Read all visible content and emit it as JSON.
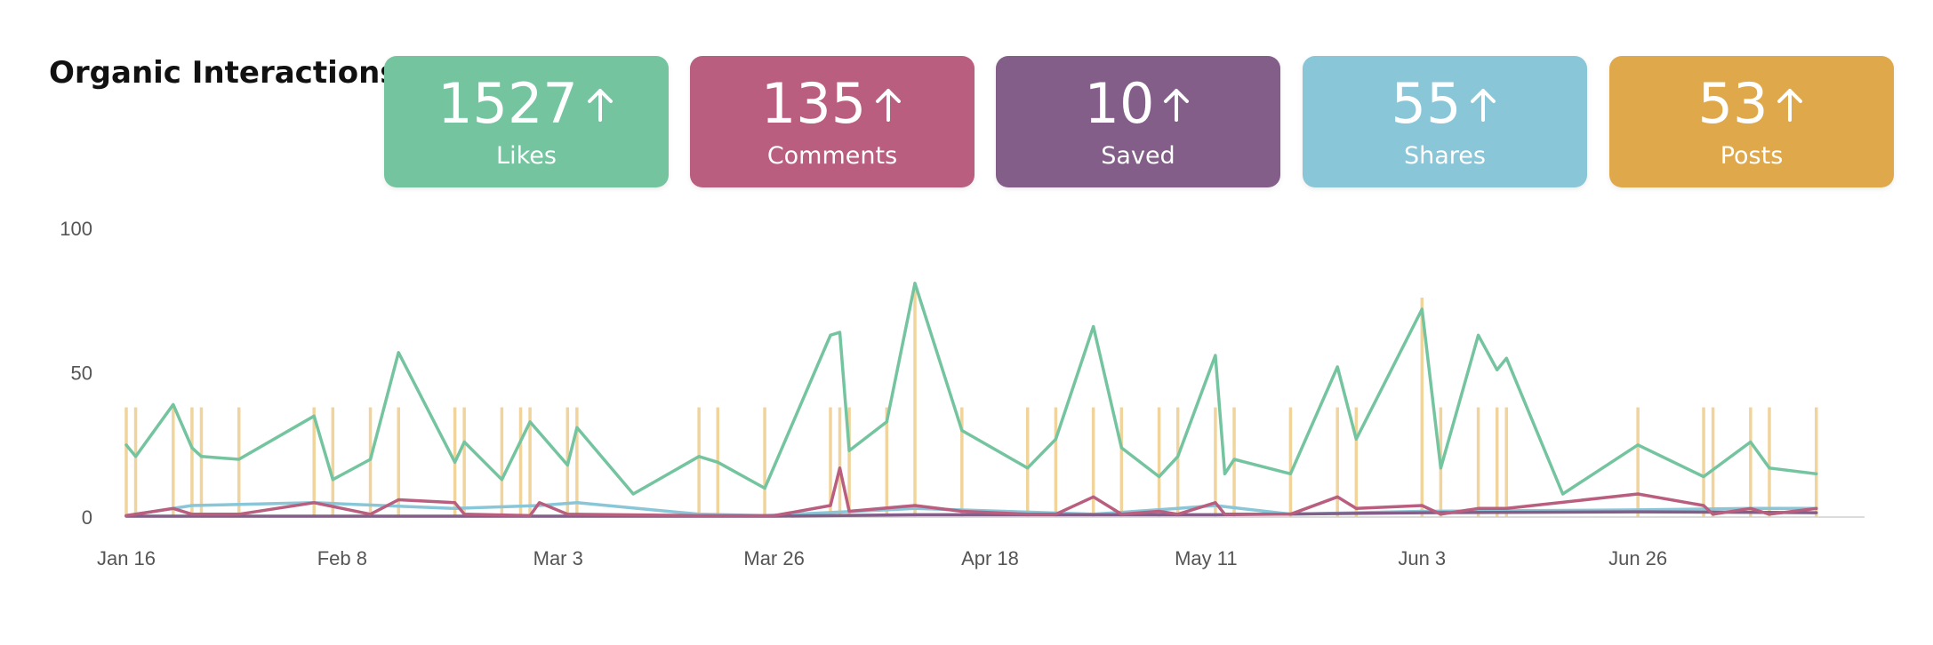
{
  "header": {
    "title": "Organic Interactions"
  },
  "cards": [
    {
      "value": "1527",
      "label": "Likes",
      "color": "#74c49f"
    },
    {
      "value": "135",
      "label": "Comments",
      "color": "#b95e7e"
    },
    {
      "value": "10",
      "label": "Saved",
      "color": "#835e88"
    },
    {
      "value": "55",
      "label": "Shares",
      "color": "#89c6d8"
    },
    {
      "value": "53",
      "label": "Posts",
      "color": "#dfa94b"
    }
  ],
  "icons": {
    "trend": "arrow-up-icon"
  },
  "chart_data": {
    "type": "line",
    "title": "",
    "xlabel": "",
    "ylabel": "",
    "ylim": [
      0,
      100
    ],
    "xlim": [
      "2023-01-16",
      "2023-07-19"
    ],
    "y_ticks": [
      "0",
      "50",
      "100"
    ],
    "x_ticks": [
      {
        "label": "Jan 16",
        "date": "2023-01-16"
      },
      {
        "label": "Feb 8",
        "date": "2023-02-08"
      },
      {
        "label": "Mar 3",
        "date": "2023-03-03"
      },
      {
        "label": "Mar 26",
        "date": "2023-03-26"
      },
      {
        "label": "Apr 18",
        "date": "2023-04-18"
      },
      {
        "label": "May 11",
        "date": "2023-05-11"
      },
      {
        "label": "Jun 3",
        "date": "2023-06-03"
      },
      {
        "label": "Jun 26",
        "date": "2023-06-26"
      }
    ],
    "grid": false,
    "legend": "none",
    "posts": {
      "color": "#f0d49c",
      "points": [
        [
          "2023-01-16",
          38
        ],
        [
          "2023-01-17",
          38
        ],
        [
          "2023-01-21",
          38
        ],
        [
          "2023-01-23",
          38
        ],
        [
          "2023-01-24",
          38
        ],
        [
          "2023-01-28",
          38
        ],
        [
          "2023-02-05",
          38
        ],
        [
          "2023-02-07",
          38
        ],
        [
          "2023-02-11",
          38
        ],
        [
          "2023-02-14",
          38
        ],
        [
          "2023-02-20",
          38
        ],
        [
          "2023-02-21",
          38
        ],
        [
          "2023-02-25",
          38
        ],
        [
          "2023-02-27",
          38
        ],
        [
          "2023-02-28",
          38
        ],
        [
          "2023-03-04",
          38
        ],
        [
          "2023-03-05",
          38
        ],
        [
          "2023-03-18",
          38
        ],
        [
          "2023-03-20",
          38
        ],
        [
          "2023-03-25",
          38
        ],
        [
          "2023-04-01",
          38
        ],
        [
          "2023-04-02",
          38
        ],
        [
          "2023-04-03",
          38
        ],
        [
          "2023-04-07",
          38
        ],
        [
          "2023-04-10",
          80
        ],
        [
          "2023-04-15",
          38
        ],
        [
          "2023-04-22",
          38
        ],
        [
          "2023-04-25",
          38
        ],
        [
          "2023-04-29",
          38
        ],
        [
          "2023-05-02",
          38
        ],
        [
          "2023-05-06",
          38
        ],
        [
          "2023-05-08",
          38
        ],
        [
          "2023-05-12",
          38
        ],
        [
          "2023-05-14",
          38
        ],
        [
          "2023-05-20",
          38
        ],
        [
          "2023-05-25",
          38
        ],
        [
          "2023-05-27",
          38
        ],
        [
          "2023-06-03",
          76
        ],
        [
          "2023-06-05",
          38
        ],
        [
          "2023-06-09",
          38
        ],
        [
          "2023-06-11",
          38
        ],
        [
          "2023-06-12",
          38
        ],
        [
          "2023-06-26",
          38
        ],
        [
          "2023-07-03",
          38
        ],
        [
          "2023-07-04",
          38
        ],
        [
          "2023-07-08",
          38
        ],
        [
          "2023-07-10",
          38
        ],
        [
          "2023-07-15",
          38
        ]
      ]
    },
    "series": [
      {
        "color": "#89c6d8",
        "points": [
          [
            "2023-01-16",
            0.5
          ],
          [
            "2023-01-23",
            4
          ],
          [
            "2023-02-05",
            5
          ],
          [
            "2023-02-20",
            3
          ],
          [
            "2023-03-01",
            4
          ],
          [
            "2023-03-05",
            5
          ],
          [
            "2023-03-18",
            1
          ],
          [
            "2023-03-25",
            0.5
          ],
          [
            "2023-04-10",
            3
          ],
          [
            "2023-04-29",
            1
          ],
          [
            "2023-05-08",
            3
          ],
          [
            "2023-05-12",
            4
          ],
          [
            "2023-05-20",
            1
          ],
          [
            "2023-06-03",
            2
          ],
          [
            "2023-06-26",
            2.5
          ],
          [
            "2023-07-08",
            3
          ],
          [
            "2023-07-15",
            3
          ]
        ]
      },
      {
        "color": "#835e88",
        "points": [
          [
            "2023-01-16",
            0.3
          ],
          [
            "2023-02-20",
            0.3
          ],
          [
            "2023-03-26",
            0.3
          ],
          [
            "2023-04-10",
            0.8
          ],
          [
            "2023-05-12",
            0.8
          ],
          [
            "2023-06-03",
            1.5
          ],
          [
            "2023-06-26",
            1.8
          ],
          [
            "2023-07-15",
            1.5
          ]
        ]
      },
      {
        "color": "#b95e7e",
        "points": [
          [
            "2023-01-16",
            0.5
          ],
          [
            "2023-01-21",
            3
          ],
          [
            "2023-01-23",
            1
          ],
          [
            "2023-01-28",
            1
          ],
          [
            "2023-02-05",
            5
          ],
          [
            "2023-02-11",
            1
          ],
          [
            "2023-02-14",
            6
          ],
          [
            "2023-02-20",
            5
          ],
          [
            "2023-02-21",
            1
          ],
          [
            "2023-02-28",
            0.5
          ],
          [
            "2023-03-01",
            5
          ],
          [
            "2023-03-04",
            1
          ],
          [
            "2023-03-18",
            0.5
          ],
          [
            "2023-03-26",
            0.5
          ],
          [
            "2023-04-01",
            4
          ],
          [
            "2023-04-02",
            17
          ],
          [
            "2023-04-03",
            2
          ],
          [
            "2023-04-10",
            4
          ],
          [
            "2023-04-15",
            2
          ],
          [
            "2023-04-22",
            1
          ],
          [
            "2023-04-25",
            1
          ],
          [
            "2023-04-29",
            7
          ],
          [
            "2023-05-02",
            1
          ],
          [
            "2023-05-06",
            2
          ],
          [
            "2023-05-08",
            1
          ],
          [
            "2023-05-12",
            5
          ],
          [
            "2023-05-13",
            1
          ],
          [
            "2023-05-20",
            1
          ],
          [
            "2023-05-25",
            7
          ],
          [
            "2023-05-27",
            3
          ],
          [
            "2023-06-03",
            4
          ],
          [
            "2023-06-05",
            1
          ],
          [
            "2023-06-09",
            3
          ],
          [
            "2023-06-12",
            3
          ],
          [
            "2023-06-26",
            8
          ],
          [
            "2023-07-03",
            4
          ],
          [
            "2023-07-04",
            1
          ],
          [
            "2023-07-08",
            3
          ],
          [
            "2023-07-10",
            1
          ],
          [
            "2023-07-15",
            3
          ]
        ]
      },
      {
        "color": "#74c49f",
        "points": [
          [
            "2023-01-16",
            25
          ],
          [
            "2023-01-17",
            21
          ],
          [
            "2023-01-21",
            39
          ],
          [
            "2023-01-23",
            24
          ],
          [
            "2023-01-24",
            21
          ],
          [
            "2023-01-28",
            20
          ],
          [
            "2023-02-05",
            35
          ],
          [
            "2023-02-07",
            13
          ],
          [
            "2023-02-11",
            20
          ],
          [
            "2023-02-14",
            57
          ],
          [
            "2023-02-20",
            19
          ],
          [
            "2023-02-21",
            26
          ],
          [
            "2023-02-25",
            13
          ],
          [
            "2023-02-28",
            33
          ],
          [
            "2023-03-04",
            18
          ],
          [
            "2023-03-05",
            31
          ],
          [
            "2023-03-11",
            8
          ],
          [
            "2023-03-18",
            21
          ],
          [
            "2023-03-20",
            19
          ],
          [
            "2023-03-25",
            10
          ],
          [
            "2023-04-01",
            63
          ],
          [
            "2023-04-02",
            64
          ],
          [
            "2023-04-03",
            23
          ],
          [
            "2023-04-07",
            33
          ],
          [
            "2023-04-10",
            81
          ],
          [
            "2023-04-15",
            30
          ],
          [
            "2023-04-22",
            17
          ],
          [
            "2023-04-25",
            27
          ],
          [
            "2023-04-29",
            66
          ],
          [
            "2023-05-02",
            24
          ],
          [
            "2023-05-06",
            14
          ],
          [
            "2023-05-08",
            21
          ],
          [
            "2023-05-12",
            56
          ],
          [
            "2023-05-13",
            15
          ],
          [
            "2023-05-14",
            20
          ],
          [
            "2023-05-20",
            15
          ],
          [
            "2023-05-25",
            52
          ],
          [
            "2023-05-27",
            27
          ],
          [
            "2023-06-03",
            72
          ],
          [
            "2023-06-05",
            17
          ],
          [
            "2023-06-09",
            63
          ],
          [
            "2023-06-11",
            51
          ],
          [
            "2023-06-12",
            55
          ],
          [
            "2023-06-18",
            8
          ],
          [
            "2023-06-26",
            25
          ],
          [
            "2023-07-03",
            14
          ],
          [
            "2023-07-08",
            26
          ],
          [
            "2023-07-10",
            17
          ],
          [
            "2023-07-15",
            15
          ]
        ]
      }
    ]
  }
}
